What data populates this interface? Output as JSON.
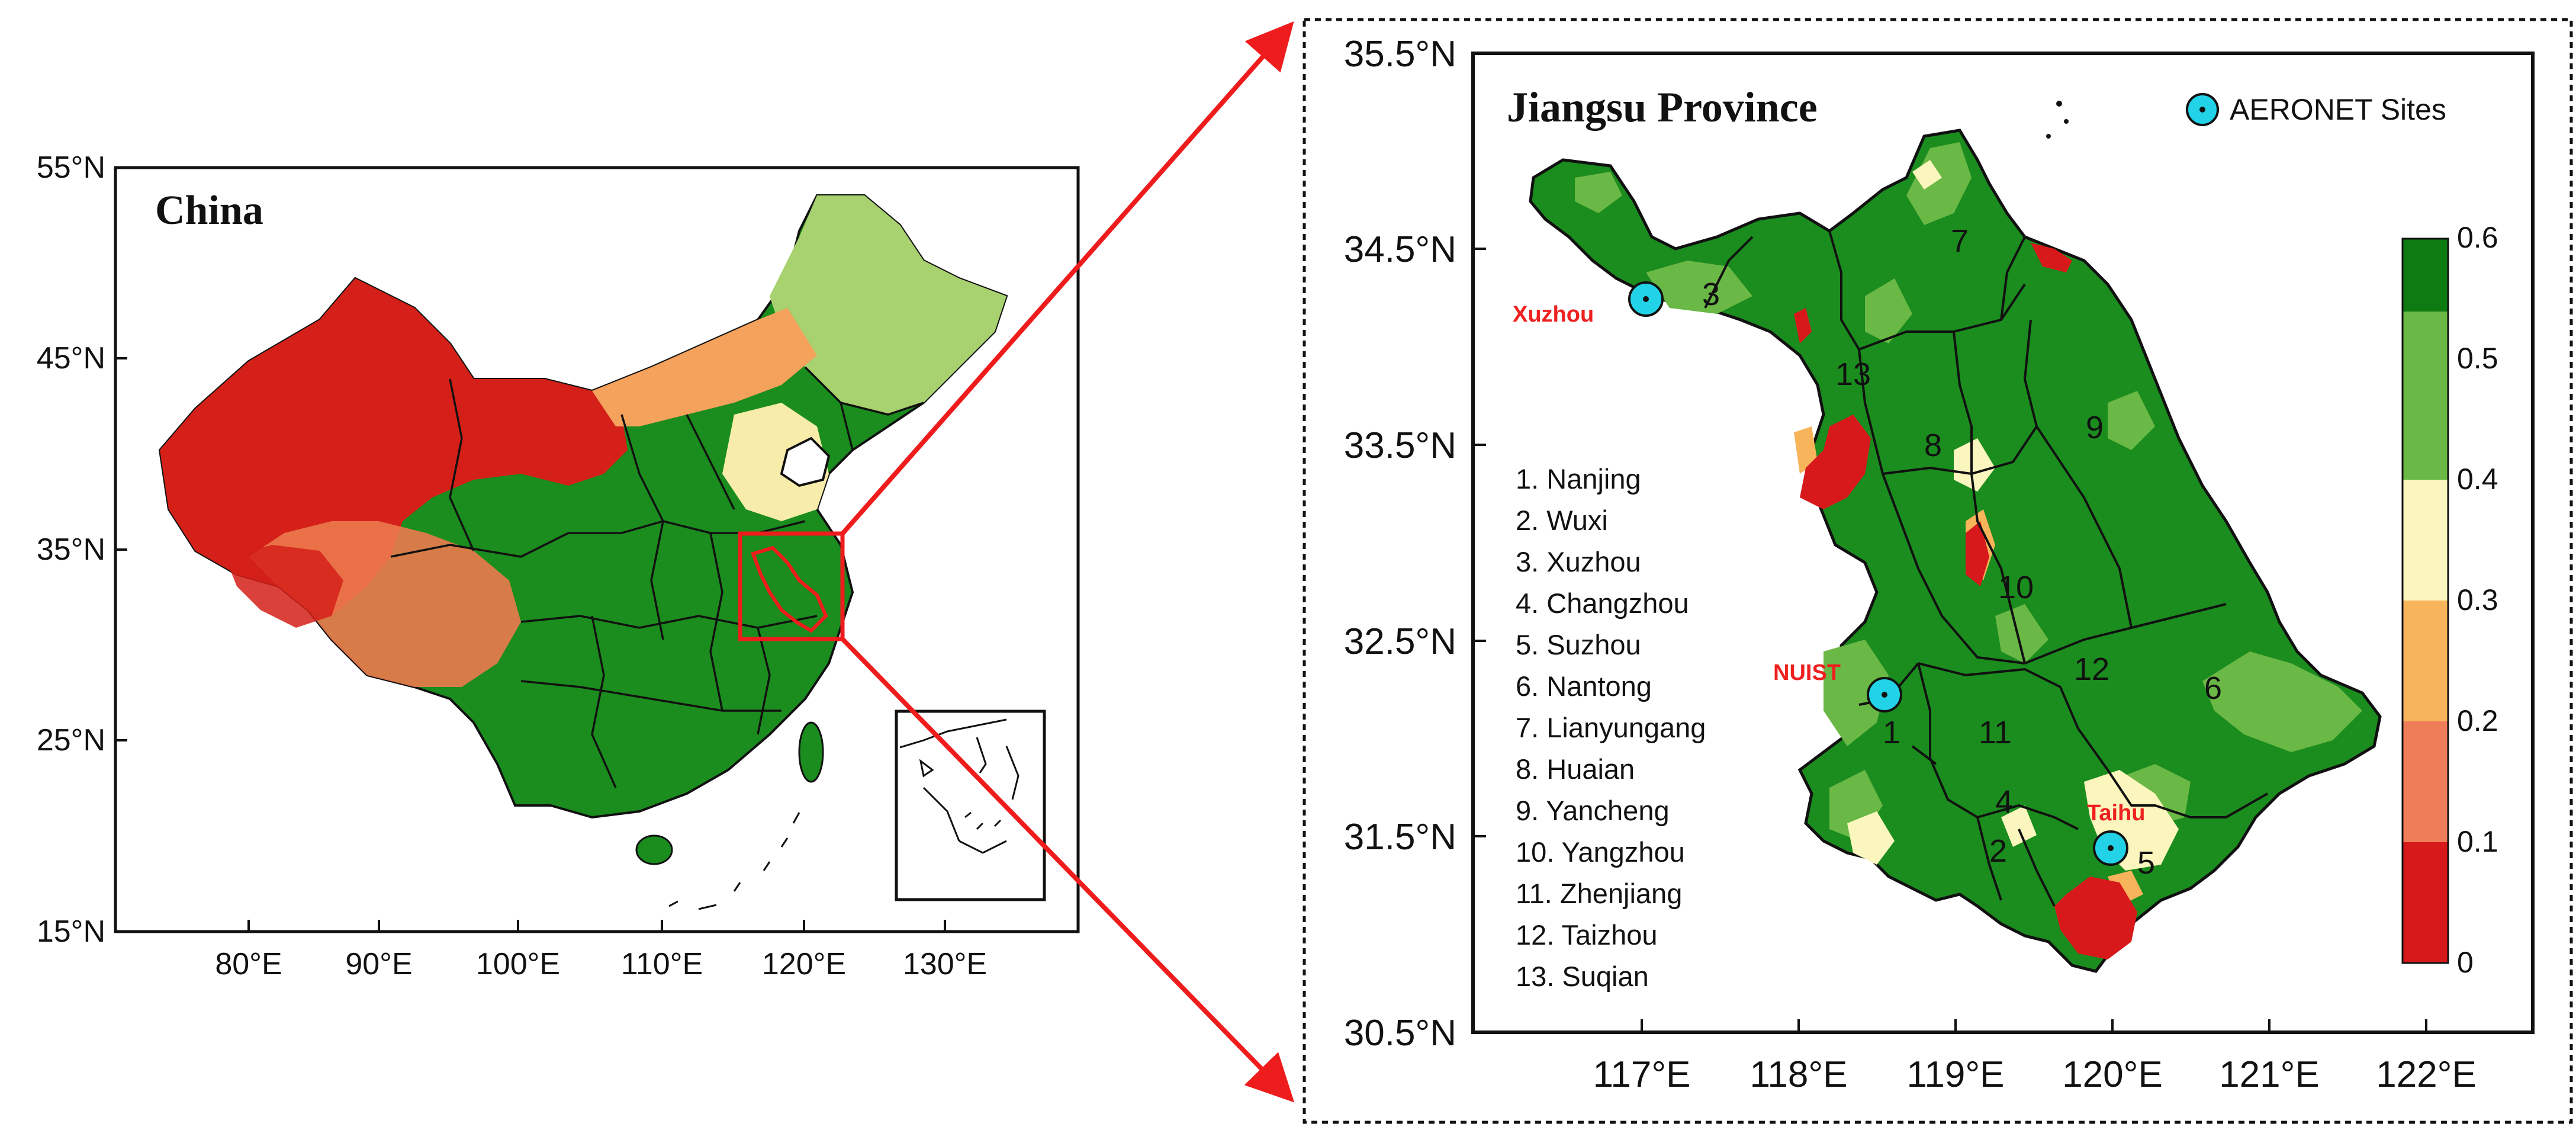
{
  "left_panel": {
    "title": "China",
    "lat_ticks": [
      "55°N",
      "45°N",
      "35°N",
      "25°N",
      "15°N"
    ],
    "lon_ticks": [
      "80°E",
      "90°E",
      "100°E",
      "110°E",
      "120°E",
      "130°E"
    ]
  },
  "right_panel": {
    "title": "Jiangsu Province",
    "legend_label": "AERONET Sites",
    "lat_ticks": [
      "35.5°N",
      "34.5°N",
      "33.5°N",
      "32.5°N",
      "31.5°N",
      "30.5°N"
    ],
    "lon_ticks": [
      "117°E",
      "118°E",
      "119°E",
      "120°E",
      "121°E",
      "122°E"
    ],
    "sites": [
      {
        "name": "Xuzhou",
        "lon": 117.2,
        "lat": 34.2
      },
      {
        "name": "NUIST",
        "lon": 118.7,
        "lat": 32.2
      },
      {
        "name": "Taihu",
        "lon": 120.2,
        "lat": 31.4
      }
    ],
    "cities": [
      "1. Nanjing",
      "2. Wuxi",
      "3. Xuzhou",
      "4. Changzhou",
      "5. Suzhou",
      "6. Nantong",
      "7. Lianyungang",
      "8. Huaian",
      "9. Yancheng",
      "10. Yangzhou",
      "11. Zhenjiang",
      "12. Taizhou",
      "13. Suqian"
    ],
    "region_numbers": [
      "1",
      "2",
      "3",
      "4",
      "5",
      "6",
      "7",
      "8",
      "9",
      "10",
      "11",
      "12",
      "13"
    ],
    "colorbar": {
      "ticks": [
        "0.6",
        "0.5",
        "0.4",
        "0.3",
        "0.2",
        "0.1",
        "0"
      ],
      "colors": [
        "#0d7a12",
        "#6ab845",
        "#fbf5be",
        "#f8b45a",
        "#f07d5a",
        "#d7191c"
      ]
    }
  }
}
